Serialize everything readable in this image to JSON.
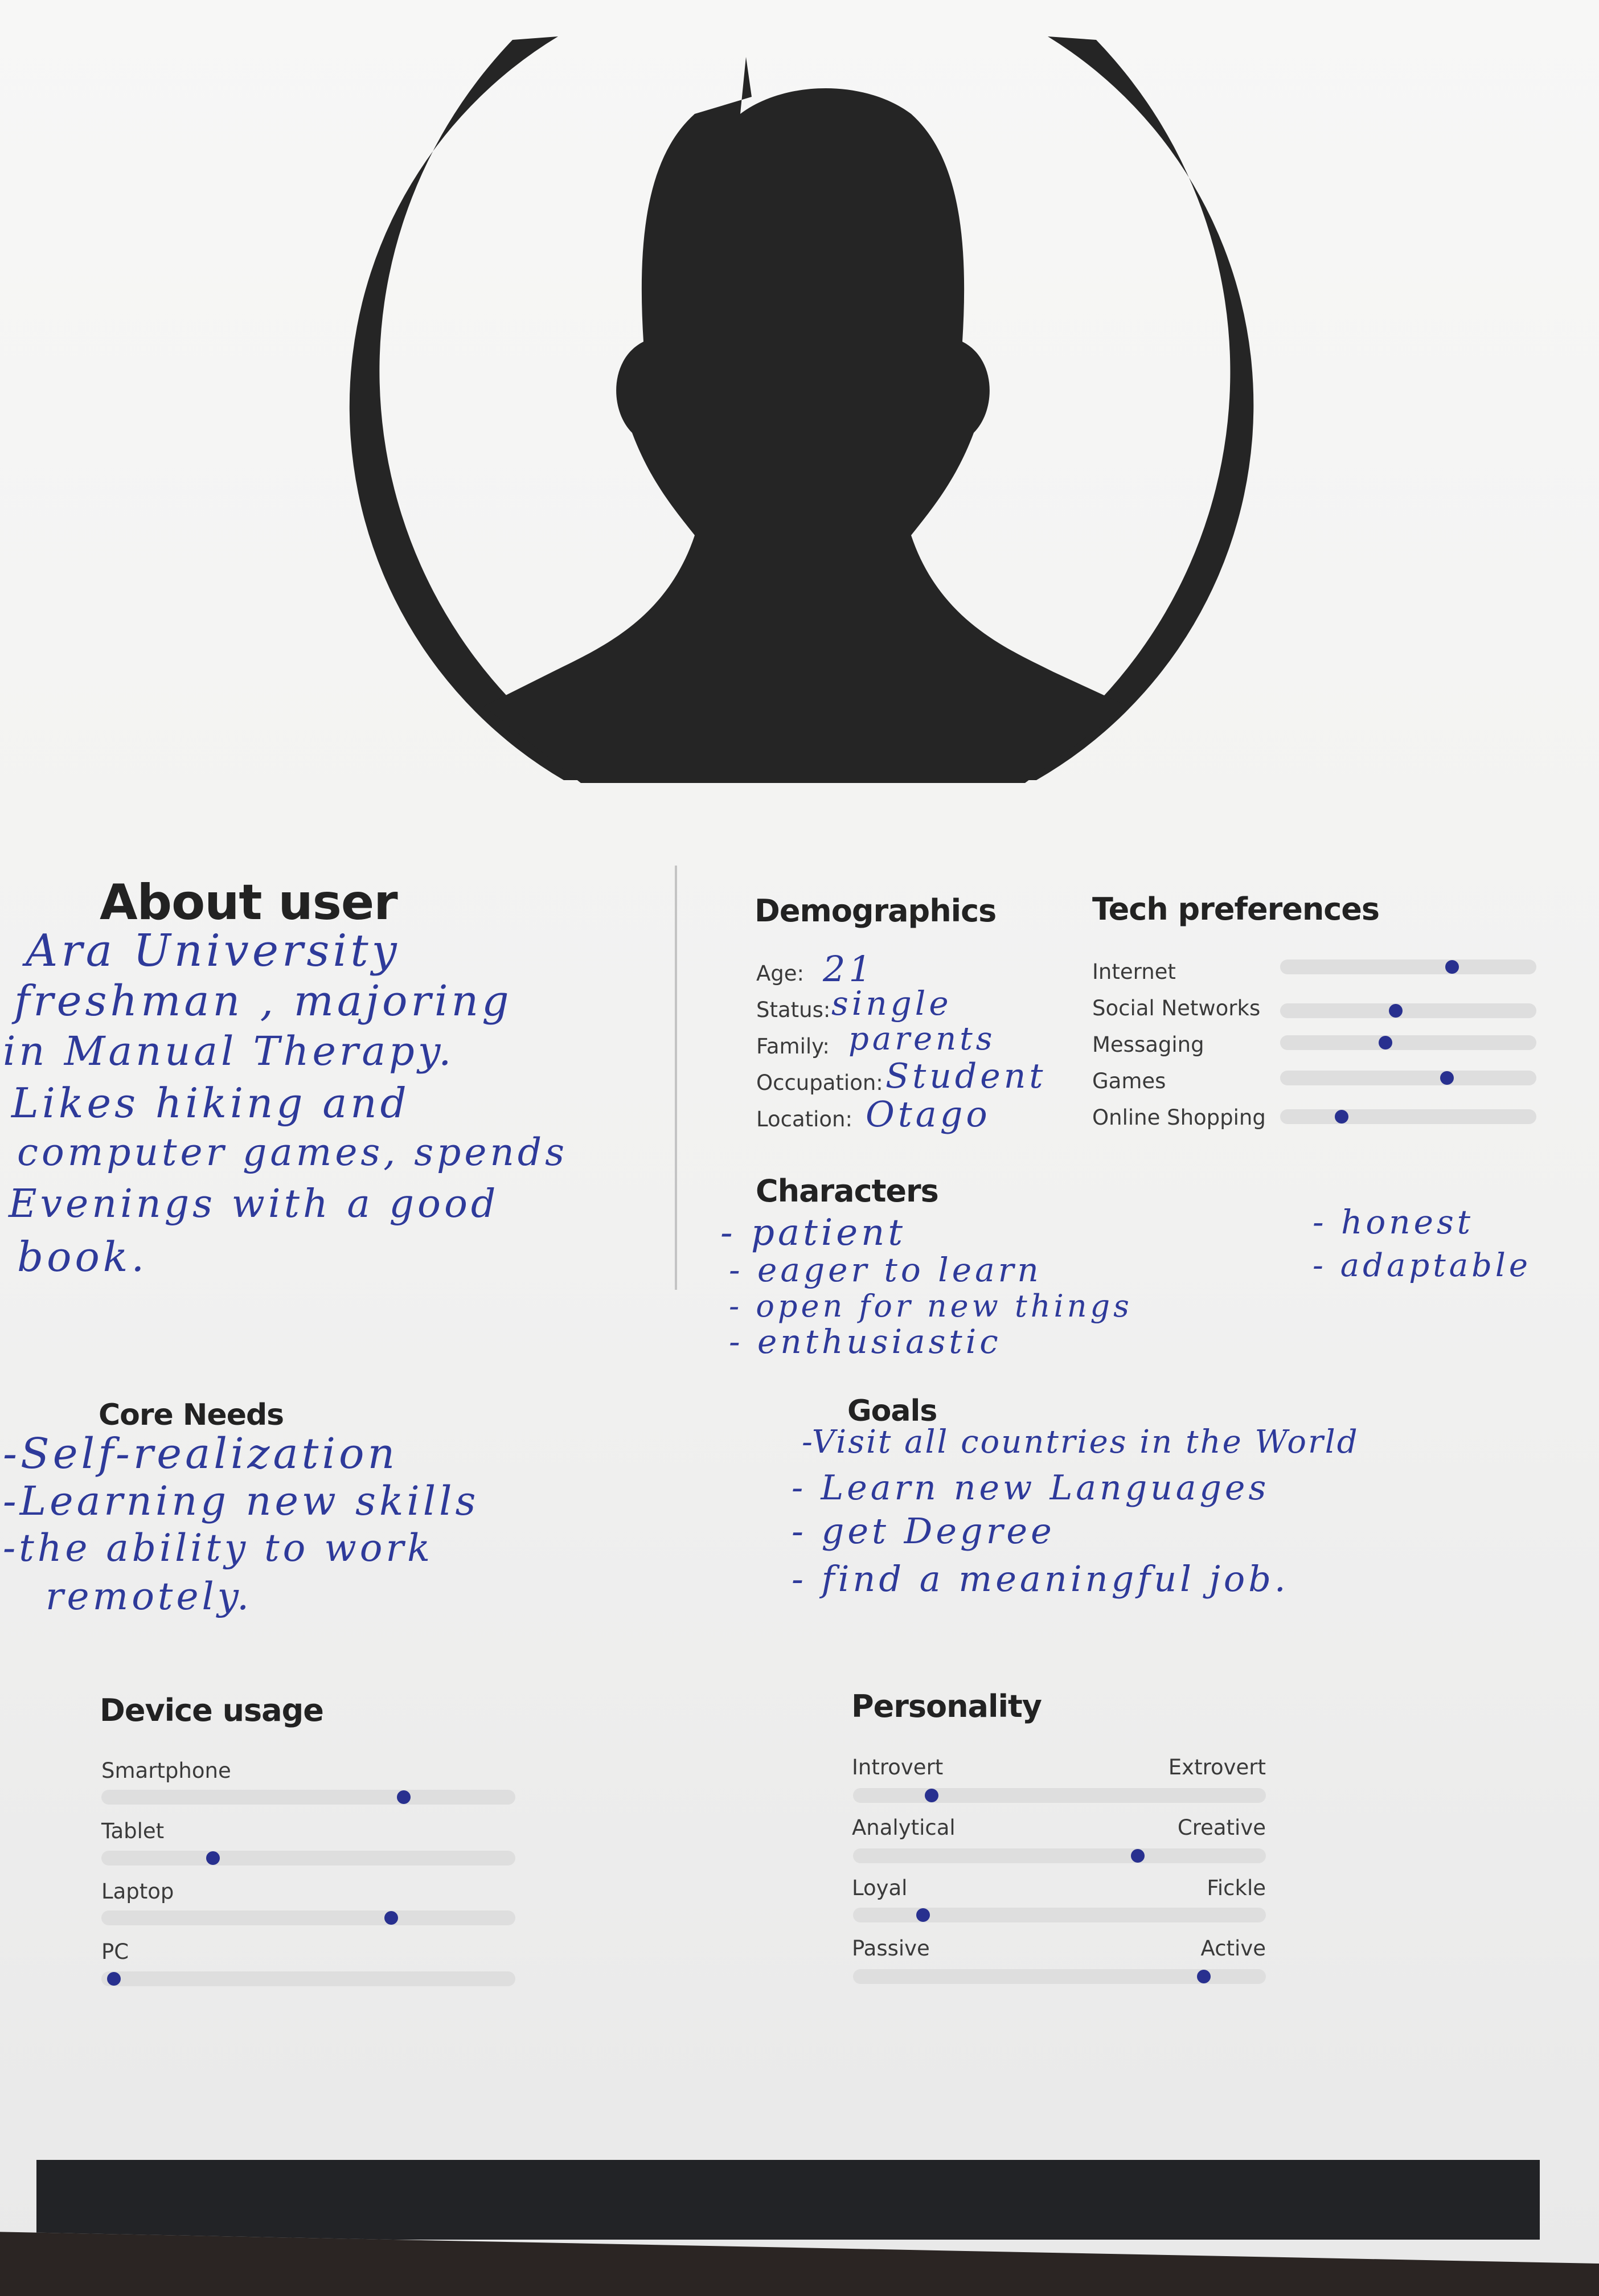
{
  "about": {
    "title": "About user",
    "handwritten_lines": [
      "Ara University",
      "freshman , majoring",
      "in Manual Therapy.",
      "Likes hiking and",
      "computer games, spends",
      "Evenings with a good",
      "book."
    ]
  },
  "demographics": {
    "title": "Demographics",
    "rows": [
      {
        "label": "Age:",
        "value": "21"
      },
      {
        "label": "Status:",
        "value": "single"
      },
      {
        "label": "Family:",
        "value": "parents"
      },
      {
        "label": "Occupation:",
        "value": "Student"
      },
      {
        "label": "Location:",
        "value": "Otago"
      }
    ]
  },
  "tech_preferences": {
    "title": "Tech preferences",
    "items": [
      {
        "label": "Internet",
        "level": 0.67
      },
      {
        "label": "Social Networks",
        "level": 0.45
      },
      {
        "label": "Messaging",
        "level": 0.41
      },
      {
        "label": "Games",
        "level": 0.65
      },
      {
        "label": "Online Shopping",
        "level": 0.24
      }
    ]
  },
  "characters": {
    "title": "Characters",
    "left_items": [
      "- patient",
      "- eager to learn",
      "- open for new things",
      "- enthusiastic"
    ],
    "right_items": [
      "- honest",
      "- adaptable"
    ]
  },
  "core_needs": {
    "title": "Core Needs",
    "handwritten_lines": [
      "-Self-realization",
      "-Learning new skills",
      "-the ability to work",
      "remotely."
    ]
  },
  "goals": {
    "title": "Goals",
    "handwritten_lines": [
      "-Visit all countries in the World",
      "- Learn new Languages",
      "- get Degree",
      "- find a meaningful job."
    ]
  },
  "device_usage": {
    "title": "Device usage",
    "items": [
      {
        "label": "Smartphone",
        "level": 0.73
      },
      {
        "label": "Tablet",
        "level": 0.27
      },
      {
        "label": "Laptop",
        "level": 0.7
      },
      {
        "label": "PC",
        "level": 0.03
      }
    ]
  },
  "personality": {
    "title": "Personality",
    "items": [
      {
        "left": "Introvert",
        "right": "Extrovert",
        "level": 0.19
      },
      {
        "left": "Analytical",
        "right": "Creative",
        "level": 0.69
      },
      {
        "left": "Loyal",
        "right": "Fickle",
        "level": 0.17
      },
      {
        "left": "Passive",
        "right": "Active",
        "level": 0.85
      }
    ]
  },
  "colors": {
    "ink": "#2e3a9a",
    "slider_dot": "#28308f",
    "silhouette": "#252525",
    "track": "#dedede"
  }
}
